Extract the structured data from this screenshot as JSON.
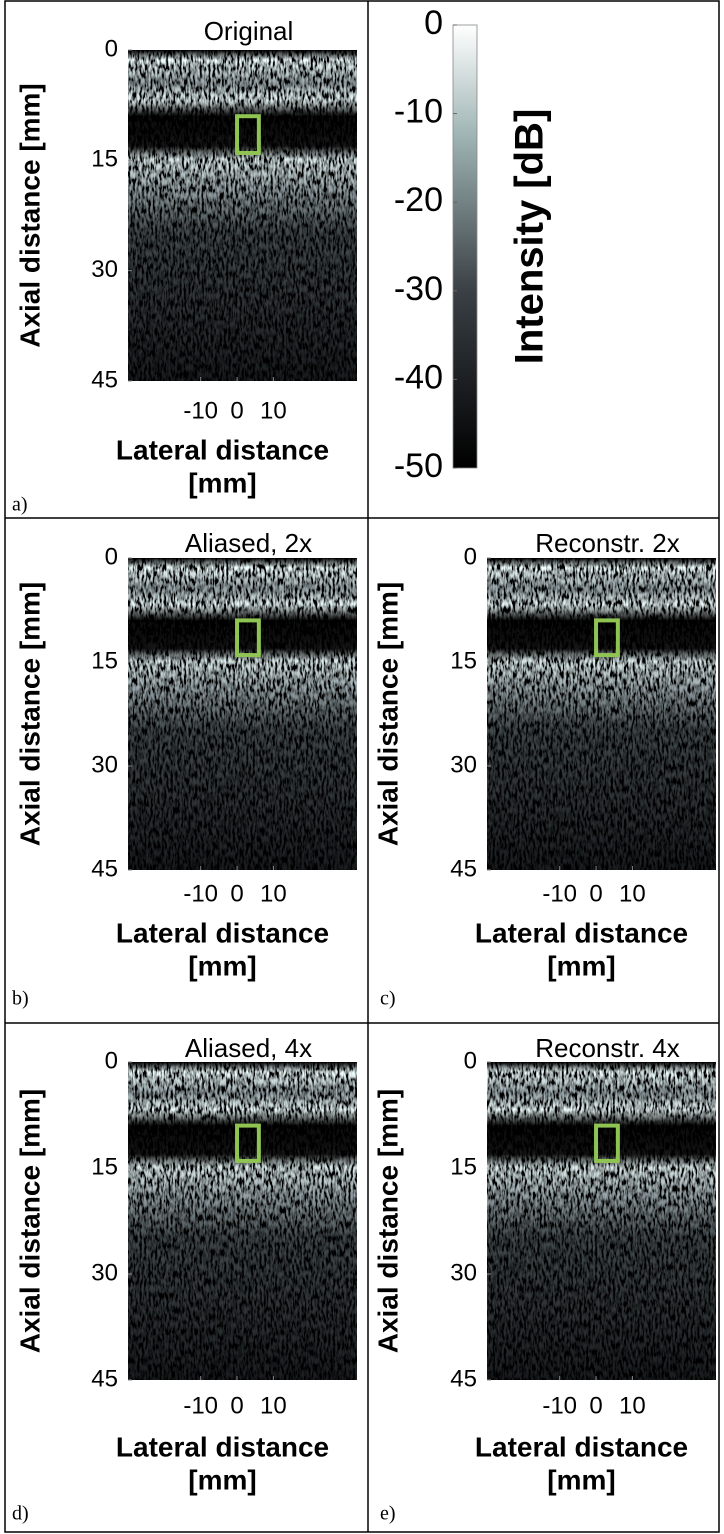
{
  "chart_data": [
    {
      "type": "image",
      "title": "Original",
      "panel_label": "a)",
      "ylabel": "Axial distance [mm]",
      "xlabel": [
        "Lateral distance",
        "[mm]"
      ],
      "xlim": [
        -30,
        33
      ],
      "xticks": [
        -10,
        0,
        10
      ],
      "ylim": [
        45,
        0
      ],
      "yticks": [
        0,
        15,
        30,
        45
      ]
    },
    {
      "type": "image",
      "title": "Aliased, 2x",
      "panel_label": "b)",
      "ylabel": "Axial distance [mm]",
      "xlabel": [
        "Lateral distance",
        "[mm]"
      ],
      "xlim": [
        -30,
        33
      ],
      "xticks": [
        -10,
        0,
        10
      ],
      "ylim": [
        45,
        0
      ],
      "yticks": [
        0,
        15,
        30,
        45
      ]
    },
    {
      "type": "image",
      "title": "Reconstr. 2x",
      "panel_label": "c)",
      "ylabel": "Axial distance [mm]",
      "xlabel": [
        "Lateral distance",
        "[mm]"
      ],
      "xlim": [
        -30,
        33
      ],
      "xticks": [
        -10,
        0,
        10
      ],
      "ylim": [
        45,
        0
      ],
      "yticks": [
        0,
        15,
        30,
        45
      ]
    },
    {
      "type": "image",
      "title": "Aliased, 4x",
      "panel_label": "d)",
      "ylabel": "Axial distance [mm]",
      "xlabel": [
        "Lateral distance",
        "[mm]"
      ],
      "xlim": [
        -30,
        33
      ],
      "xticks": [
        -10,
        0,
        10
      ],
      "ylim": [
        45,
        0
      ],
      "yticks": [
        0,
        15,
        30,
        45
      ]
    },
    {
      "type": "image",
      "title": "Reconstr. 4x",
      "panel_label": "e)",
      "ylabel": "Axial distance [mm]",
      "xlabel": [
        "Lateral distance",
        "[mm]"
      ],
      "xlim": [
        -30,
        33
      ],
      "xticks": [
        -10,
        0,
        10
      ],
      "ylim": [
        45,
        0
      ],
      "yticks": [
        0,
        15,
        30,
        45
      ]
    },
    {
      "type": "colorbar",
      "label": "Intensity [dB]",
      "ylim": [
        -50,
        0
      ],
      "yticks": [
        0,
        -10,
        -20,
        -30,
        -40,
        -50
      ]
    }
  ]
}
